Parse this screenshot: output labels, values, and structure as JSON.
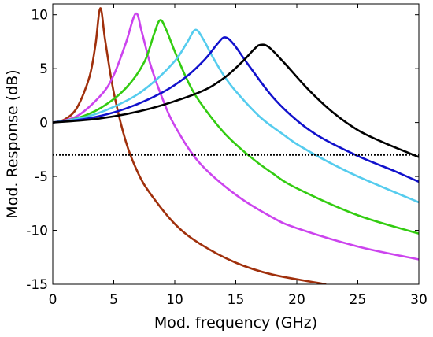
{
  "chart_data": {
    "type": "line",
    "title": "",
    "xlabel": "Mod. frequency (GHz)",
    "ylabel": "Mod. Response (dB)",
    "xlim": [
      0,
      30
    ],
    "ylim": [
      -15,
      11
    ],
    "xticks": [
      0,
      5,
      10,
      15,
      20,
      25,
      30
    ],
    "yticks": [
      -15,
      -10,
      -5,
      0,
      5,
      10
    ],
    "xtick_labels": [
      "0",
      "5",
      "10",
      "15",
      "20",
      "25",
      "30"
    ],
    "ytick_labels": [
      "-15",
      "-10",
      "-5",
      "0",
      "5",
      "10"
    ],
    "grid": false,
    "legend": "none",
    "reference_line": {
      "y": -3,
      "style": "dotted",
      "color": "#000000"
    },
    "series": [
      {
        "color": "#a0300c",
        "resonance_ghz": 3.9,
        "peak_db": 10.6,
        "points": [
          [
            0,
            0
          ],
          [
            1,
            0.3
          ],
          [
            2,
            1.4
          ],
          [
            3,
            4.2
          ],
          [
            3.5,
            7.2
          ],
          [
            3.9,
            10.6
          ],
          [
            4.3,
            7.6
          ],
          [
            5,
            2.8
          ],
          [
            6,
            -1.8
          ],
          [
            7,
            -4.7
          ],
          [
            8,
            -6.6
          ],
          [
            10,
            -9.4
          ],
          [
            12,
            -11.2
          ],
          [
            15,
            -13
          ],
          [
            18,
            -14.1
          ],
          [
            22.4,
            -15
          ]
        ]
      },
      {
        "color": "#cc44ee",
        "resonance_ghz": 6.8,
        "peak_db": 10.1,
        "points": [
          [
            0,
            0
          ],
          [
            2,
            0.6
          ],
          [
            4,
            2.6
          ],
          [
            5,
            4.4
          ],
          [
            6,
            7.4
          ],
          [
            6.8,
            10.1
          ],
          [
            7.3,
            8.4
          ],
          [
            8,
            5.4
          ],
          [
            9,
            2.2
          ],
          [
            10,
            -0.3
          ],
          [
            12,
            -3.7
          ],
          [
            15,
            -6.7
          ],
          [
            18,
            -8.8
          ],
          [
            20,
            -9.8
          ],
          [
            25,
            -11.5
          ],
          [
            30,
            -12.7
          ]
        ]
      },
      {
        "color": "#33cc11",
        "resonance_ghz": 8.8,
        "peak_db": 9.5,
        "points": [
          [
            0,
            0
          ],
          [
            2,
            0.4
          ],
          [
            4,
            1.4
          ],
          [
            6,
            3.2
          ],
          [
            7.5,
            5.6
          ],
          [
            8.3,
            8.2
          ],
          [
            8.8,
            9.5
          ],
          [
            9.3,
            8.6
          ],
          [
            10,
            6.6
          ],
          [
            11,
            4
          ],
          [
            12,
            2
          ],
          [
            14,
            -0.9
          ],
          [
            16,
            -3
          ],
          [
            18,
            -4.7
          ],
          [
            20,
            -6.1
          ],
          [
            25,
            -8.6
          ],
          [
            30,
            -10.3
          ]
        ]
      },
      {
        "color": "#55ccee",
        "resonance_ghz": 11.7,
        "peak_db": 8.6,
        "points": [
          [
            0,
            0
          ],
          [
            3,
            0.6
          ],
          [
            6,
            2
          ],
          [
            8,
            3.5
          ],
          [
            10,
            5.7
          ],
          [
            11,
            7.4
          ],
          [
            11.7,
            8.6
          ],
          [
            12.4,
            7.6
          ],
          [
            13,
            6.3
          ],
          [
            14,
            4.4
          ],
          [
            15,
            2.9
          ],
          [
            17,
            0.5
          ],
          [
            19,
            -1.2
          ],
          [
            20,
            -2
          ],
          [
            22,
            -3.3
          ],
          [
            25,
            -5
          ],
          [
            30,
            -7.4
          ]
        ]
      },
      {
        "color": "#1111cc",
        "resonance_ghz": 14.1,
        "peak_db": 7.9,
        "points": [
          [
            0,
            0
          ],
          [
            3,
            0.4
          ],
          [
            6,
            1.3
          ],
          [
            9,
            2.8
          ],
          [
            11,
            4.3
          ],
          [
            12.5,
            5.9
          ],
          [
            13.5,
            7.3
          ],
          [
            14.1,
            7.9
          ],
          [
            14.8,
            7.3
          ],
          [
            16,
            5.4
          ],
          [
            18,
            2.4
          ],
          [
            20,
            0.2
          ],
          [
            22,
            -1.4
          ],
          [
            25,
            -3.1
          ],
          [
            28,
            -4.5
          ],
          [
            30,
            -5.5
          ]
        ]
      },
      {
        "color": "#000000",
        "resonance_ghz": 17.0,
        "peak_db": 7.2,
        "points": [
          [
            0,
            0
          ],
          [
            4,
            0.4
          ],
          [
            8,
            1.3
          ],
          [
            12,
            2.8
          ],
          [
            14,
            4.1
          ],
          [
            15.5,
            5.6
          ],
          [
            16.5,
            6.8
          ],
          [
            17,
            7.2
          ],
          [
            17.7,
            7
          ],
          [
            19,
            5.5
          ],
          [
            21,
            3
          ],
          [
            23,
            0.9
          ],
          [
            25,
            -0.7
          ],
          [
            27,
            -1.8
          ],
          [
            30,
            -3.2
          ]
        ]
      }
    ]
  }
}
